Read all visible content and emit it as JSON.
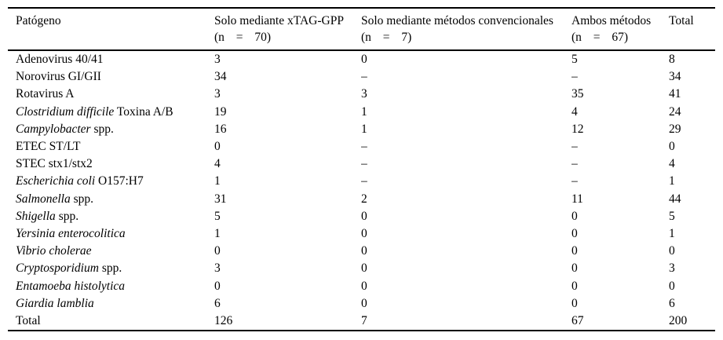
{
  "table": {
    "columns": [
      {
        "label": "Patógeno",
        "sub": ""
      },
      {
        "label": "Solo mediante xTAG-GPP",
        "sub": "(n = 70)"
      },
      {
        "label": "Solo mediante métodos convencionales",
        "sub": "(n = 7)"
      },
      {
        "label": "Ambos métodos",
        "sub": "(n = 67)"
      },
      {
        "label": "Total",
        "sub": ""
      }
    ],
    "rows": [
      {
        "name_parts": [
          {
            "text": "Adenovirus 40/41",
            "italic": false
          }
        ],
        "values": [
          "3",
          "0",
          "5",
          "8"
        ]
      },
      {
        "name_parts": [
          {
            "text": "Norovirus GI/GII",
            "italic": false
          }
        ],
        "values": [
          "34",
          "–",
          "–",
          "34"
        ]
      },
      {
        "name_parts": [
          {
            "text": "Rotavirus A",
            "italic": false
          }
        ],
        "values": [
          "3",
          "3",
          "35",
          "41"
        ]
      },
      {
        "name_parts": [
          {
            "text": "Clostridium difficile",
            "italic": true
          },
          {
            "text": " Toxina A/B",
            "italic": false
          }
        ],
        "values": [
          "19",
          "1",
          "4",
          "24"
        ]
      },
      {
        "name_parts": [
          {
            "text": "Campylobacter",
            "italic": true
          },
          {
            "text": " spp.",
            "italic": false
          }
        ],
        "values": [
          "16",
          "1",
          "12",
          "29"
        ]
      },
      {
        "name_parts": [
          {
            "text": "ETEC ST/LT",
            "italic": false
          }
        ],
        "values": [
          "0",
          "–",
          "–",
          "0"
        ]
      },
      {
        "name_parts": [
          {
            "text": "STEC stx1/stx2",
            "italic": false
          }
        ],
        "values": [
          "4",
          "–",
          "–",
          "4"
        ]
      },
      {
        "name_parts": [
          {
            "text": "Escherichia coli",
            "italic": true
          },
          {
            "text": " O157:H7",
            "italic": false
          }
        ],
        "values": [
          "1",
          "–",
          "–",
          "1"
        ]
      },
      {
        "name_parts": [
          {
            "text": "Salmonella",
            "italic": true
          },
          {
            "text": " spp.",
            "italic": false
          }
        ],
        "values": [
          "31",
          "2",
          "11",
          "44"
        ]
      },
      {
        "name_parts": [
          {
            "text": "Shigella",
            "italic": true
          },
          {
            "text": " spp.",
            "italic": false
          }
        ],
        "values": [
          "5",
          "0",
          "0",
          "5"
        ]
      },
      {
        "name_parts": [
          {
            "text": "Yersinia enterocolitica",
            "italic": true
          }
        ],
        "values": [
          "1",
          "0",
          "0",
          "1"
        ]
      },
      {
        "name_parts": [
          {
            "text": "Vibrio cholerae",
            "italic": true
          }
        ],
        "values": [
          "0",
          "0",
          "0",
          "0"
        ]
      },
      {
        "name_parts": [
          {
            "text": "Cryptosporidium",
            "italic": true
          },
          {
            "text": " spp.",
            "italic": false
          }
        ],
        "values": [
          "3",
          "0",
          "0",
          "3"
        ]
      },
      {
        "name_parts": [
          {
            "text": "Entamoeba histolytica",
            "italic": true
          }
        ],
        "values": [
          "0",
          "0",
          "0",
          "0"
        ]
      },
      {
        "name_parts": [
          {
            "text": "Giardia lamblia",
            "italic": true
          }
        ],
        "values": [
          "6",
          "0",
          "0",
          "6"
        ]
      },
      {
        "name_parts": [
          {
            "text": "Total",
            "italic": false
          }
        ],
        "values": [
          "126",
          "7",
          "67",
          "200"
        ]
      }
    ]
  }
}
